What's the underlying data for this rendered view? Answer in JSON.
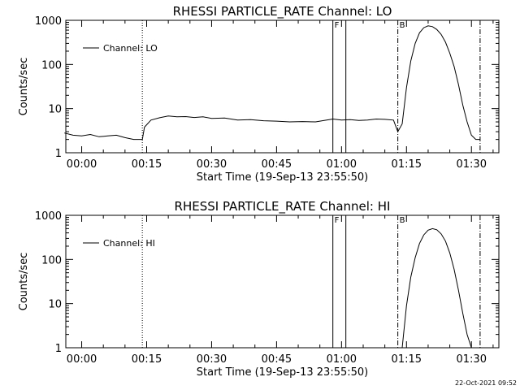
{
  "footer": {
    "timestamp": "22-Oct-2021 09:52"
  },
  "chart_data": [
    {
      "type": "line",
      "title": "RHESSI PARTICLE_RATE Channel: LO",
      "xlabel": "Start Time (19-Sep-13 23:55:50)",
      "ylabel": "Counts/sec",
      "yscale": "log",
      "ylim": [
        1,
        1000
      ],
      "xlim": [
        "23:56:20",
        "01:36:20"
      ],
      "x_ticks": [
        "00:00",
        "00:15",
        "00:30",
        "00:45",
        "01:00",
        "01:15",
        "01:30"
      ],
      "y_ticks": [
        "1",
        "10",
        "100",
        "1000"
      ],
      "legend": {
        "position": "top-left",
        "entries": [
          "Channel: LO"
        ]
      },
      "grid": false,
      "markers": [
        {
          "time": "00:14",
          "style": "dotted",
          "label": ""
        },
        {
          "time": "00:58",
          "style": "solid",
          "label": "F"
        },
        {
          "time": "01:01",
          "style": "solid",
          "label": ""
        },
        {
          "time": "01:13",
          "style": "dash-dot",
          "label": "B"
        },
        {
          "time": "01:32",
          "style": "dash-dot",
          "label": ""
        }
      ],
      "series": [
        {
          "name": "Channel: LO",
          "x": [
            "23:56",
            "23:58",
            "00:00",
            "00:02",
            "00:04",
            "00:06",
            "00:08",
            "00:10",
            "00:12",
            "00:14",
            "00:14.5",
            "00:16",
            "00:18",
            "00:20",
            "00:22",
            "00:24",
            "00:26",
            "00:28",
            "00:30",
            "00:33",
            "00:36",
            "00:39",
            "00:42",
            "00:45",
            "00:48",
            "00:51",
            "00:54",
            "00:56",
            "00:58",
            "01:00",
            "01:02",
            "01:04",
            "01:06",
            "01:08",
            "01:10",
            "01:12",
            "01:13",
            "01:14",
            "01:15",
            "01:16",
            "01:17",
            "01:18",
            "01:19",
            "01:20",
            "01:21",
            "01:22",
            "01:23",
            "01:24",
            "01:25",
            "01:26",
            "01:27",
            "01:28",
            "01:29",
            "01:30",
            "01:31",
            "01:32"
          ],
          "values": [
            2.8,
            2.5,
            2.4,
            2.6,
            2.3,
            2.4,
            2.5,
            2.2,
            2.0,
            2.0,
            3.8,
            5.5,
            6.2,
            6.8,
            6.5,
            6.6,
            6.3,
            6.5,
            6.0,
            6.1,
            5.5,
            5.6,
            5.3,
            5.2,
            5.0,
            5.1,
            5.0,
            5.4,
            5.8,
            5.5,
            5.6,
            5.4,
            5.5,
            5.8,
            5.7,
            5.5,
            3.0,
            4.5,
            30,
            120,
            300,
            520,
            680,
            750,
            720,
            620,
            480,
            320,
            180,
            90,
            35,
            12,
            5,
            2.5,
            2.0,
            2.0
          ]
        }
      ]
    },
    {
      "type": "line",
      "title": "RHESSI PARTICLE_RATE Channel: HI",
      "xlabel": "Start Time (19-Sep-13 23:55:50)",
      "ylabel": "Counts/sec",
      "yscale": "log",
      "ylim": [
        1,
        1000
      ],
      "xlim": [
        "23:56:20",
        "01:36:20"
      ],
      "x_ticks": [
        "00:00",
        "00:15",
        "00:30",
        "00:45",
        "01:00",
        "01:15",
        "01:30"
      ],
      "y_ticks": [
        "1",
        "10",
        "100",
        "1000"
      ],
      "legend": {
        "position": "top-left",
        "entries": [
          "Channel: HI"
        ]
      },
      "grid": false,
      "markers": [
        {
          "time": "00:14",
          "style": "dotted",
          "label": ""
        },
        {
          "time": "00:58",
          "style": "solid",
          "label": "F"
        },
        {
          "time": "01:01",
          "style": "solid",
          "label": ""
        },
        {
          "time": "01:13",
          "style": "dash-dot",
          "label": "B"
        },
        {
          "time": "01:32",
          "style": "dash-dot",
          "label": ""
        }
      ],
      "series": [
        {
          "name": "Channel: HI",
          "x": [
            "01:14",
            "01:15",
            "01:16",
            "01:17",
            "01:18",
            "01:19",
            "01:20",
            "01:21",
            "01:22",
            "01:23",
            "01:24",
            "01:25",
            "01:26",
            "01:27",
            "01:28",
            "01:29",
            "01:30"
          ],
          "values": [
            1.0,
            9,
            40,
            110,
            230,
            360,
            460,
            500,
            470,
            380,
            260,
            140,
            60,
            20,
            6,
            2,
            1.0
          ]
        }
      ]
    }
  ]
}
